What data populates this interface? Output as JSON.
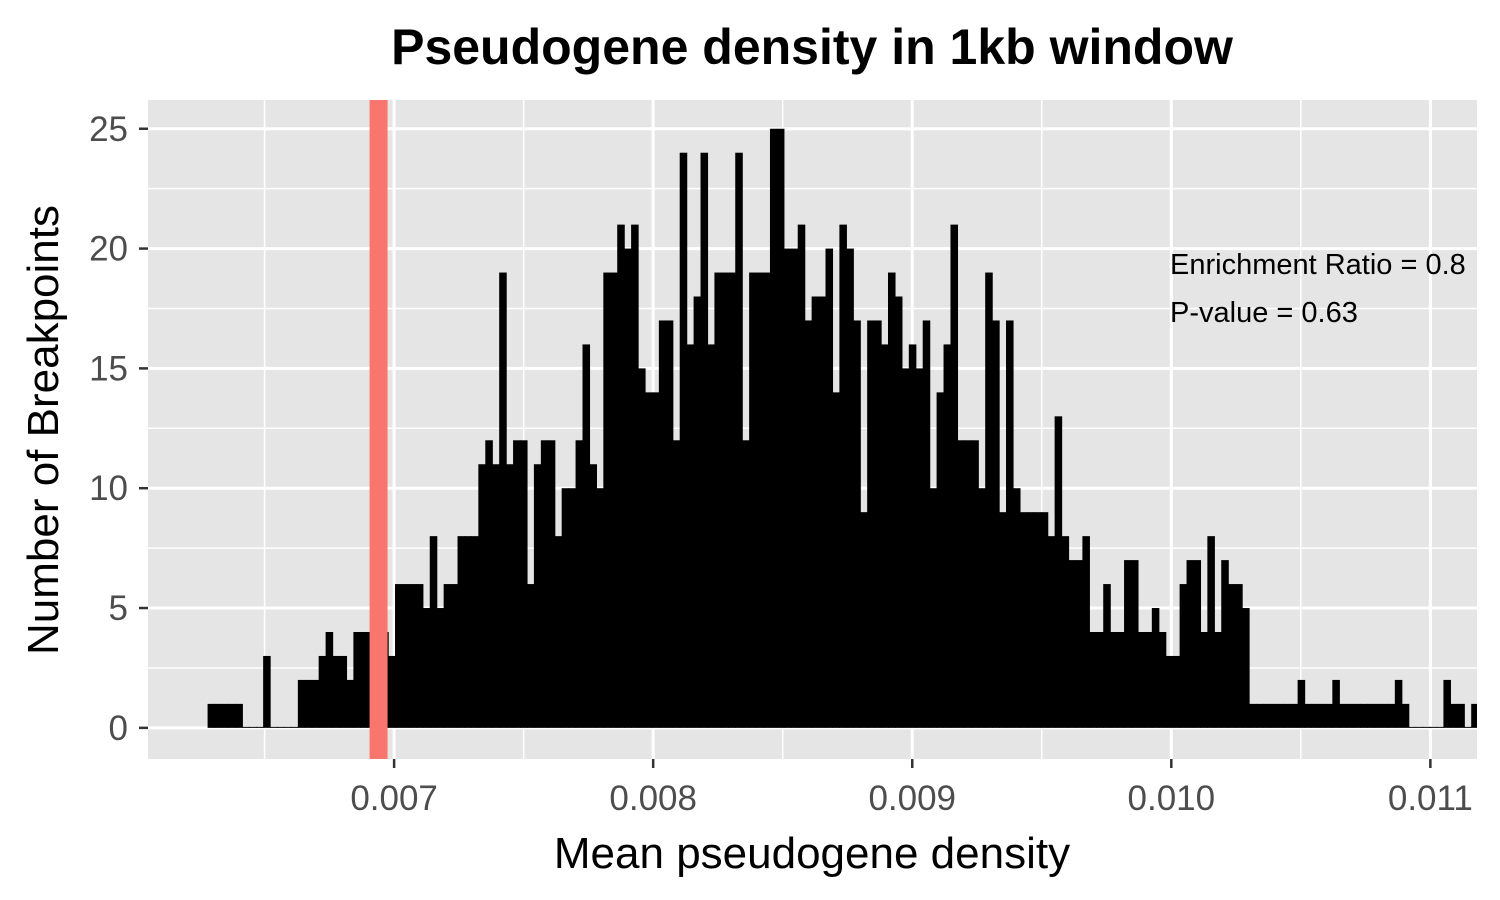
{
  "colors": {
    "panel_background": "#e5e5e5",
    "grid_line": "#ffffff",
    "bar_fill": "#000000",
    "reference_line": "#f8766d",
    "tick_text": "#4d4d4d",
    "text": "#000000"
  },
  "chart_data": {
    "type": "bar",
    "title": "Pseudogene density in 1kb window",
    "xlabel": "Mean pseudogene density",
    "ylabel": "Number of Breakpoints",
    "xlim": [
      0.00605,
      0.01118
    ],
    "ylim": [
      -1.3,
      26.2
    ],
    "x_ticks": [
      0.007,
      0.008,
      0.009,
      0.01,
      0.011
    ],
    "x_tick_labels": [
      "0.007",
      "0.008",
      "0.009",
      "0.010",
      "0.011"
    ],
    "y_ticks": [
      0,
      5,
      10,
      15,
      20,
      25
    ],
    "y_tick_labels": [
      "0",
      "5",
      "10",
      "15",
      "20",
      "25"
    ],
    "grid": true,
    "bins_start": 0.00628,
    "bin_width": 2.68e-05,
    "counts": [
      1,
      1,
      1,
      1,
      1,
      0,
      0,
      0,
      3,
      0,
      0,
      0,
      0,
      2,
      2,
      2,
      3,
      4,
      3,
      3,
      2,
      4,
      4,
      4,
      4,
      4,
      3,
      6,
      6,
      6,
      6,
      5,
      8,
      5,
      6,
      6,
      8,
      8,
      8,
      11,
      12,
      11,
      19,
      11,
      12,
      12,
      6,
      11,
      12,
      12,
      8,
      10,
      10,
      12,
      16,
      11,
      10,
      19,
      19,
      21,
      20,
      21,
      15,
      14,
      14,
      17,
      17,
      12,
      24,
      16,
      18,
      24,
      16,
      19,
      19,
      19,
      24,
      12,
      19,
      19,
      19,
      25,
      25,
      20,
      20,
      21,
      17,
      18,
      18,
      20,
      14,
      21,
      20,
      17,
      9,
      17,
      17,
      16,
      19,
      18,
      15,
      16,
      15,
      17,
      10,
      14,
      16,
      21,
      12,
      12,
      12,
      10,
      19,
      17,
      9,
      17,
      10,
      9,
      9,
      9,
      9,
      8,
      13,
      8,
      7,
      7,
      8,
      4,
      4,
      6,
      4,
      4,
      7,
      7,
      4,
      4,
      5,
      4,
      3,
      3,
      6,
      7,
      7,
      4,
      8,
      4,
      7,
      6,
      6,
      5,
      1,
      1,
      1,
      1,
      1,
      1,
      1,
      2,
      1,
      1,
      1,
      1,
      2,
      1,
      1,
      1,
      1,
      1,
      1,
      1,
      1,
      2,
      1,
      0,
      0,
      0,
      0,
      0,
      2,
      1,
      1,
      0,
      1
    ],
    "reference_line_x": 0.00694,
    "annotations": [
      "Enrichment Ratio = 0.8",
      "P-value = 0.63"
    ]
  }
}
